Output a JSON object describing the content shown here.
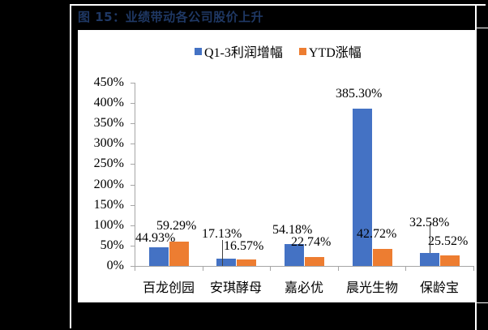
{
  "title": "图 15：业绩带动各公司股价上升",
  "legend": [
    {
      "label": "Q1-3利润增幅",
      "color": "#4472c4"
    },
    {
      "label": "YTD涨幅",
      "color": "#ed7d31"
    }
  ],
  "y_ticks": [
    "0%",
    "50%",
    "100%",
    "150%",
    "200%",
    "250%",
    "300%",
    "350%",
    "400%",
    "450%"
  ],
  "categories": [
    "百龙创园",
    "安琪酵母",
    "嘉必优",
    "晨光生物",
    "保龄宝"
  ],
  "labels": {
    "q13": [
      "44.93%",
      "17.13%",
      "54.18%",
      "385.30%",
      "32.58%"
    ],
    "ytd": [
      "59.29%",
      "16.57%",
      "22.74%",
      "42.72%",
      "25.52%"
    ]
  },
  "chart_data": {
    "type": "bar",
    "title": "图 15：业绩带动各公司股价上升",
    "categories": [
      "百龙创园",
      "安琪酵母",
      "嘉必优",
      "晨光生物",
      "保龄宝"
    ],
    "series": [
      {
        "name": "Q1-3利润增幅",
        "color": "#4472c4",
        "values": [
          44.93,
          17.13,
          54.18,
          385.3,
          32.58
        ]
      },
      {
        "name": "YTD涨幅",
        "color": "#ed7d31",
        "values": [
          59.29,
          16.57,
          22.74,
          42.72,
          25.52
        ]
      }
    ],
    "xlabel": "",
    "ylabel": "",
    "ylim": [
      0,
      450
    ],
    "yticks": [
      0,
      50,
      100,
      150,
      200,
      250,
      300,
      350,
      400,
      450
    ],
    "ytick_format": "percent",
    "grid": false,
    "legend_position": "top",
    "data_labels": true
  }
}
